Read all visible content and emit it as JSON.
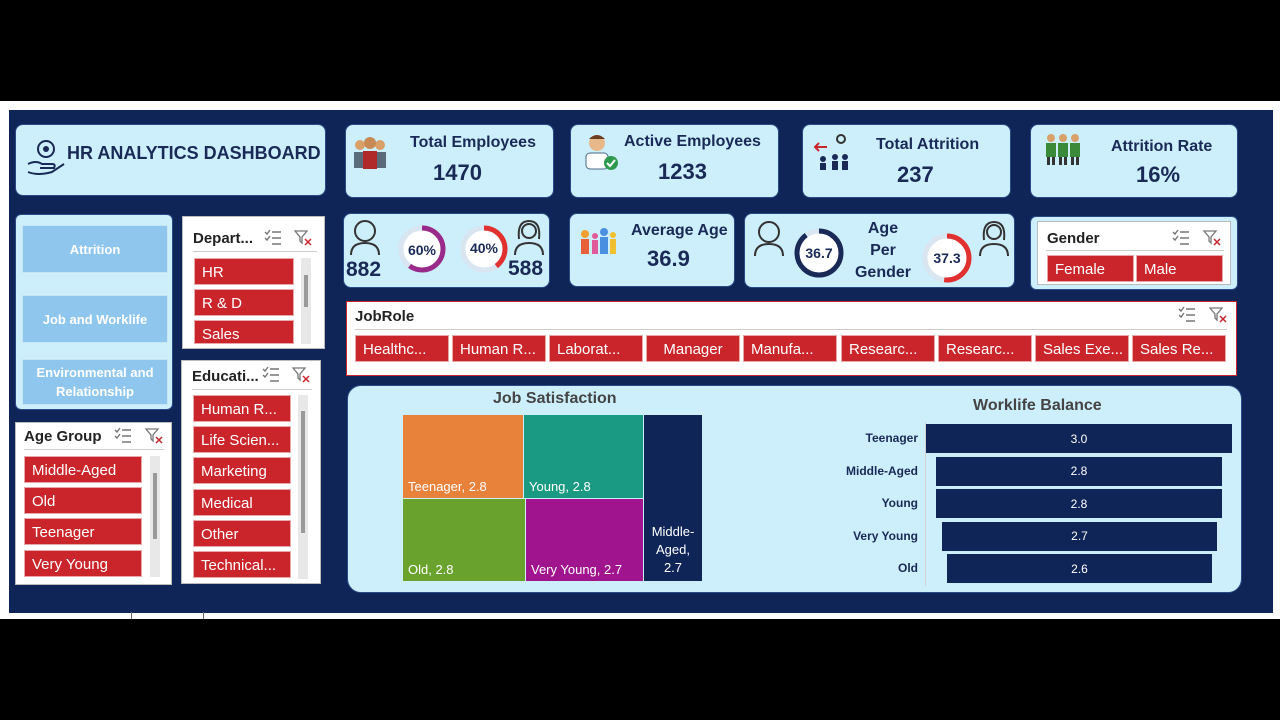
{
  "header": {
    "title": "HR ANALYTICS DASHBOARD"
  },
  "kpis": {
    "total_employees": {
      "label": "Total Employees",
      "value": "1470"
    },
    "active_employees": {
      "label": "Active Employees",
      "value": "1233"
    },
    "total_attrition": {
      "label": "Total Attrition",
      "value": "237"
    },
    "attrition_rate": {
      "label": "Attrition Rate",
      "value": "16%"
    }
  },
  "gender_split": {
    "male_count": "882",
    "male_pct_label": "60%",
    "male_pct": 0.6,
    "female_count": "588",
    "female_pct_label": "40%",
    "female_pct": 0.4
  },
  "average_age": {
    "label": "Average Age",
    "value": "36.9"
  },
  "age_per_gender": {
    "label_line1": "Age Per",
    "label_line2": "Gender",
    "male_age": "36.7",
    "male_fill": 0.9,
    "female_age": "37.3",
    "female_fill": 0.52
  },
  "nav": {
    "items": [
      {
        "label": "Attrition"
      },
      {
        "label": "Job and Worklife"
      },
      {
        "label": "Environmental and Relationship"
      }
    ]
  },
  "slicers": {
    "department": {
      "title": "Depart...",
      "items": [
        "HR",
        "R & D",
        "Sales"
      ]
    },
    "education": {
      "title": "Educati...",
      "items": [
        "Human R...",
        "Life Scien...",
        "Marketing",
        "Medical",
        "Other",
        "Technical..."
      ]
    },
    "age_group": {
      "title": "Age Group",
      "items": [
        "Middle-Aged",
        "Old",
        "Teenager",
        "Very Young"
      ]
    },
    "gender": {
      "title": "Gender",
      "items": [
        "Female",
        "Male"
      ]
    },
    "jobrole": {
      "title": "JobRole",
      "items": [
        "Healthc...",
        "Human R...",
        "Laborat...",
        "Manager",
        "Manufa...",
        "Researc...",
        "Researc...",
        "Sales Exe...",
        "Sales Re..."
      ]
    }
  },
  "colors": {
    "board_bg": "#0f2557",
    "card_bg": "#cdeefb",
    "chip_red": "#c9252b",
    "ring_male": "#9a2a8a",
    "ring_female": "#e03030",
    "ring_navy": "#1a2a57",
    "tm_orange": "#e8813a",
    "tm_teal": "#1a9a82",
    "tm_green": "#6aa22e",
    "tm_purple": "#a0148e",
    "tm_navy": "#0f2557"
  },
  "chart_data": [
    {
      "type": "treemap",
      "title": "Job Satisfaction",
      "items": [
        {
          "label": "Teenager, 2.8",
          "category": "Teenager",
          "value": 2.8,
          "color": "#e8813a"
        },
        {
          "label": "Young, 2.8",
          "category": "Young",
          "value": 2.8,
          "color": "#1a9a82"
        },
        {
          "label": "Old, 2.8",
          "category": "Old",
          "value": 2.8,
          "color": "#6aa22e"
        },
        {
          "label": "Very Young, 2.7",
          "category": "Very Young",
          "value": 2.7,
          "color": "#a0148e"
        },
        {
          "label": "Middle-Aged, 2.7",
          "category": "Middle-Aged",
          "value": 2.7,
          "color": "#0f2557"
        }
      ]
    },
    {
      "type": "bar",
      "orientation": "horizontal",
      "title": "Worklife Balance",
      "categories": [
        "Teenager",
        "Middle-Aged",
        "Young",
        "Very Young",
        "Old"
      ],
      "values": [
        3.0,
        2.8,
        2.8,
        2.7,
        2.6
      ],
      "value_labels": [
        "3.0",
        "2.8",
        "2.8",
        "2.7",
        "2.6"
      ],
      "color": "#0f2557"
    }
  ]
}
